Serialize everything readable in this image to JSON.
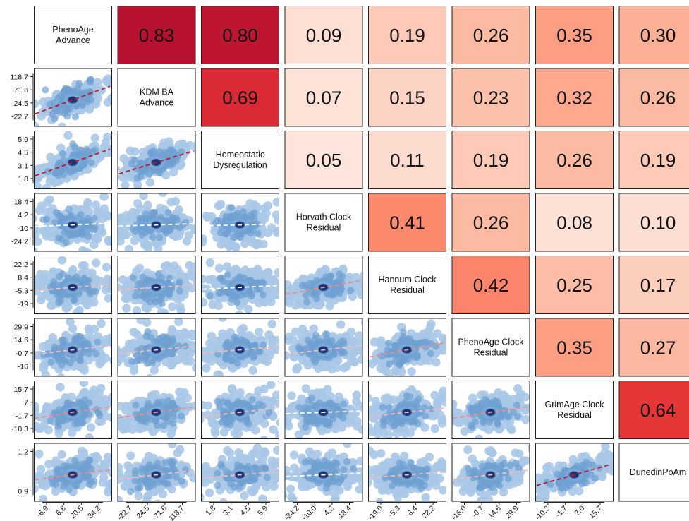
{
  "chart_data": {
    "type": "scatter",
    "variables": [
      {
        "label_lines": [
          "PhenoAge",
          "Advance"
        ],
        "ticks": [
          "-22.7",
          "24.5",
          "71.6",
          "118.7"
        ],
        "x_ticks": [
          "-6.9",
          "6.8",
          "20.5",
          "34.2"
        ]
      },
      {
        "label_lines": [
          "KDM BA",
          "Advance"
        ],
        "ticks": [
          "1.8",
          "3.1",
          "4.5",
          "5.9"
        ],
        "x_ticks": [
          "-22.7",
          "24.5",
          "71.6",
          "118.7"
        ]
      },
      {
        "label_lines": [
          "Homeostatic",
          "Dysregulation"
        ],
        "ticks": [
          "-24.2",
          "-10",
          "4.2",
          "18.4"
        ],
        "x_ticks": [
          "1.8",
          "3.1",
          "4.5",
          "5.9"
        ]
      },
      {
        "label_lines": [
          "Horvath Clock",
          "Residual"
        ],
        "ticks": [
          "-19",
          "-5.3",
          "8.4",
          "22.2"
        ],
        "x_ticks": [
          "-24.2",
          "-10.0",
          "4.2",
          "18.4"
        ]
      },
      {
        "label_lines": [
          "Hannum Clock",
          "Residual"
        ],
        "ticks": [
          "-16",
          "-0.7",
          "14.6",
          "29.9"
        ],
        "x_ticks": [
          "-19.0",
          "-5.3",
          "8.4",
          "22.2"
        ]
      },
      {
        "label_lines": [
          "PhenoAge Clock",
          "Residual"
        ],
        "ticks": [
          "-10.3",
          "-1.7",
          "7",
          "15.7"
        ],
        "x_ticks": [
          "-16.0",
          "-0.7",
          "14.6",
          "29.9"
        ]
      },
      {
        "label_lines": [
          "GrimAge Clock",
          "Residual"
        ],
        "ticks": [
          "0.9",
          "1.2"
        ],
        "x_ticks": [
          "-10.3",
          "-1.7",
          "7.0",
          "15.7"
        ]
      },
      {
        "label_lines": [
          "DunedinPoAm"
        ],
        "ticks": [],
        "x_ticks": []
      }
    ],
    "correlations": [
      {
        "row": 0,
        "col": 1,
        "value": 0.83,
        "label": "0.83"
      },
      {
        "row": 0,
        "col": 2,
        "value": 0.8,
        "label": "0.80"
      },
      {
        "row": 0,
        "col": 3,
        "value": 0.09,
        "label": "0.09"
      },
      {
        "row": 0,
        "col": 4,
        "value": 0.19,
        "label": "0.19"
      },
      {
        "row": 0,
        "col": 5,
        "value": 0.26,
        "label": "0.26"
      },
      {
        "row": 0,
        "col": 6,
        "value": 0.35,
        "label": "0.35"
      },
      {
        "row": 0,
        "col": 7,
        "value": 0.3,
        "label": "0.30"
      },
      {
        "row": 1,
        "col": 2,
        "value": 0.69,
        "label": "0.69"
      },
      {
        "row": 1,
        "col": 3,
        "value": 0.07,
        "label": "0.07"
      },
      {
        "row": 1,
        "col": 4,
        "value": 0.15,
        "label": "0.15"
      },
      {
        "row": 1,
        "col": 5,
        "value": 0.23,
        "label": "0.23"
      },
      {
        "row": 1,
        "col": 6,
        "value": 0.32,
        "label": "0.32"
      },
      {
        "row": 1,
        "col": 7,
        "value": 0.26,
        "label": "0.26"
      },
      {
        "row": 2,
        "col": 3,
        "value": 0.05,
        "label": "0.05"
      },
      {
        "row": 2,
        "col": 4,
        "value": 0.11,
        "label": "0.11"
      },
      {
        "row": 2,
        "col": 5,
        "value": 0.19,
        "label": "0.19"
      },
      {
        "row": 2,
        "col": 6,
        "value": 0.26,
        "label": "0.26"
      },
      {
        "row": 2,
        "col": 7,
        "value": 0.19,
        "label": "0.19"
      },
      {
        "row": 3,
        "col": 4,
        "value": 0.41,
        "label": "0.41"
      },
      {
        "row": 3,
        "col": 5,
        "value": 0.26,
        "label": "0.26"
      },
      {
        "row": 3,
        "col": 6,
        "value": 0.08,
        "label": "0.08"
      },
      {
        "row": 3,
        "col": 7,
        "value": 0.1,
        "label": "0.10"
      },
      {
        "row": 4,
        "col": 5,
        "value": 0.42,
        "label": "0.42"
      },
      {
        "row": 4,
        "col": 6,
        "value": 0.25,
        "label": "0.25"
      },
      {
        "row": 4,
        "col": 7,
        "value": 0.17,
        "label": "0.17"
      },
      {
        "row": 5,
        "col": 6,
        "value": 0.35,
        "label": "0.35"
      },
      {
        "row": 5,
        "col": 7,
        "value": 0.27,
        "label": "0.27"
      },
      {
        "row": 6,
        "col": 7,
        "value": 0.64,
        "label": "0.64"
      }
    ],
    "color_scale": {
      "low": "#fde8e0",
      "mid_low": "#fcbba1",
      "mid": "#fb8a6e",
      "high": "#e32f2f",
      "top": "#b10f30"
    },
    "scatter_colors": {
      "outer": "#a9c8e8",
      "mid": "#5a8ec8",
      "core": "#1a2f6e"
    },
    "trend_line_colors": {
      "strong": "#c0182a",
      "weak": "#f4a9a0",
      "none": "#ffffff"
    }
  }
}
